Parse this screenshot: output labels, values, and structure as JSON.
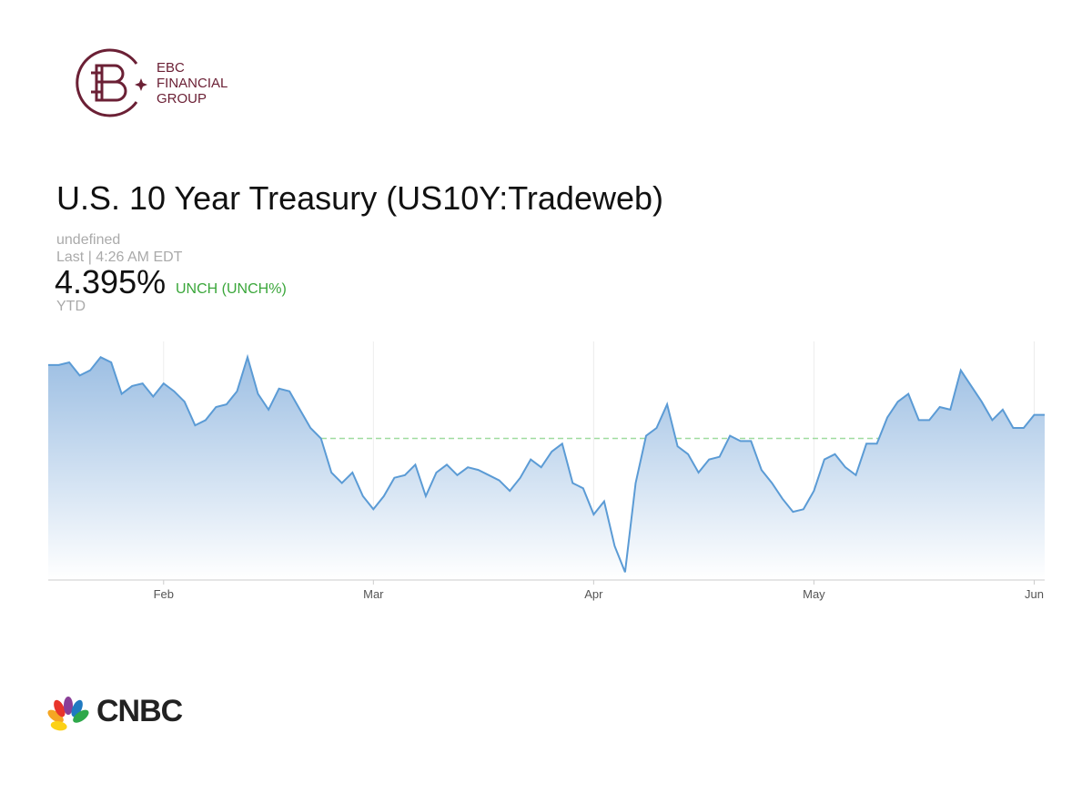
{
  "header": {
    "brand_line1": "EBC",
    "brand_line2": "FINANCIAL",
    "brand_line3": "GROUP"
  },
  "quote": {
    "source": "undefined",
    "last_time": "Last | 4:26 AM EDT",
    "price": "4.395%",
    "change": "UNCH (UNCH%)",
    "range": "YTD"
  },
  "chart_data": {
    "type": "area",
    "title": "U.S. 10 Year Treasury (US10Y:Tradeweb)",
    "categories": [
      null,
      null,
      null,
      null,
      null,
      null,
      null,
      null,
      null,
      null,
      null,
      "Feb",
      null,
      null,
      null,
      null,
      null,
      null,
      null,
      null,
      null,
      null,
      null,
      null,
      null,
      null,
      null,
      null,
      null,
      null,
      null,
      "Mar",
      null,
      null,
      null,
      null,
      null,
      null,
      null,
      null,
      null,
      null,
      null,
      null,
      null,
      null,
      null,
      null,
      null,
      null,
      null,
      null,
      "Apr",
      null,
      null,
      null,
      null,
      null,
      null,
      null,
      null,
      null,
      null,
      null,
      null,
      null,
      null,
      null,
      null,
      null,
      null,
      null,
      null,
      "May",
      null,
      null,
      null,
      null,
      null,
      null,
      null,
      null,
      null,
      null,
      null,
      null,
      null,
      null,
      null,
      null,
      null,
      null,
      null,
      null,
      "Jun",
      null
    ],
    "values": [
      4.78,
      4.78,
      4.79,
      4.74,
      4.76,
      4.81,
      4.79,
      4.67,
      4.7,
      4.71,
      4.66,
      4.71,
      4.68,
      4.64,
      4.55,
      4.57,
      4.62,
      4.63,
      4.68,
      4.81,
      4.67,
      4.61,
      4.69,
      4.68,
      4.61,
      4.54,
      4.5,
      4.37,
      4.33,
      4.37,
      4.28,
      4.23,
      4.28,
      4.35,
      4.36,
      4.4,
      4.28,
      4.37,
      4.4,
      4.36,
      4.39,
      4.38,
      4.36,
      4.34,
      4.3,
      4.35,
      4.42,
      4.39,
      4.45,
      4.48,
      4.33,
      4.31,
      4.21,
      4.26,
      4.09,
      3.99,
      4.33,
      4.51,
      4.54,
      4.63,
      4.47,
      4.44,
      4.37,
      4.42,
      4.43,
      4.51,
      4.49,
      4.49,
      4.38,
      4.33,
      4.27,
      4.22,
      4.23,
      4.3,
      4.42,
      4.44,
      4.39,
      4.36,
      4.48,
      4.48,
      4.58,
      4.64,
      4.67,
      4.57,
      4.57,
      4.62,
      4.61,
      4.76,
      4.7,
      4.64,
      4.57,
      4.61,
      4.54,
      4.54,
      4.59,
      4.59
    ],
    "color": "#5b9bd5",
    "baseline": 4.5,
    "ylim": [
      3.96,
      4.87
    ],
    "grid": true
  },
  "footer": {
    "brand": "CNBC"
  }
}
